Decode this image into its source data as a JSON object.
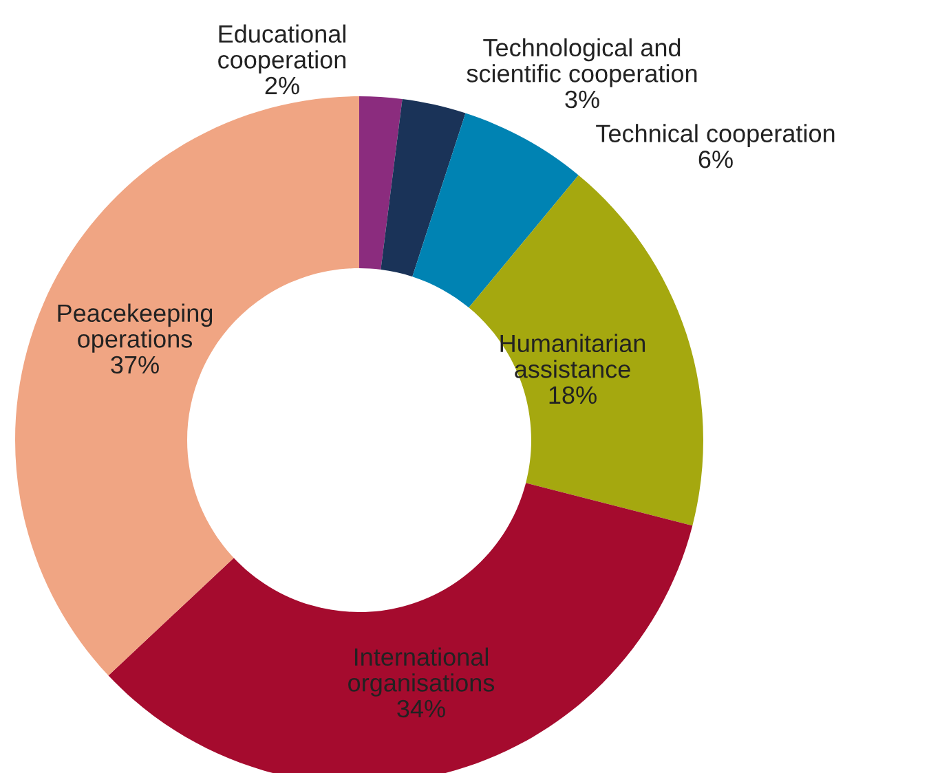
{
  "chart_data": {
    "type": "donut",
    "categories": [
      "Educational cooperation",
      "Technological and scientific cooperation",
      "Technical cooperation",
      "Humanitarian assistance",
      "International organisations",
      "Peacekeeping operations"
    ],
    "values": [
      2,
      3,
      6,
      18,
      34,
      37
    ],
    "value_labels": [
      "2%",
      "3%",
      "6%",
      "18%",
      "34%",
      "37%"
    ],
    "colors": [
      "#8b2c7e",
      "#1a3358",
      "#0083b3",
      "#a5a80f",
      "#a50b2e",
      "#f0a583"
    ],
    "legend": false
  }
}
